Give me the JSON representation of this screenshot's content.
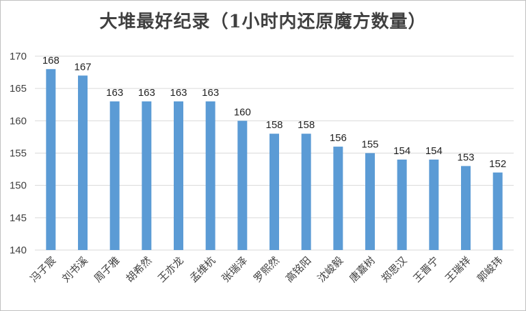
{
  "chart_data": {
    "type": "bar",
    "title": "大堆最好纪录（1小时内还原魔方数量）",
    "xlabel": "",
    "ylabel": "",
    "categories": [
      "冯子宸",
      "刘书溪",
      "周子雅",
      "胡希然",
      "王亦龙",
      "孟维杭",
      "张瑞泽",
      "罗熙然",
      "高铭阳",
      "沈峻毅",
      "唐嘉树",
      "郑思汉",
      "王晋宁",
      "王瑞祥",
      "郭峻玮"
    ],
    "values": [
      168,
      167,
      163,
      163,
      163,
      163,
      160,
      158,
      158,
      156,
      155,
      154,
      154,
      153,
      152
    ],
    "ylim": [
      140,
      170
    ],
    "yticks": [
      140,
      145,
      150,
      155,
      160,
      165,
      170
    ],
    "grid": true,
    "legend": "none",
    "data_labels": true,
    "bar_color": "#5b9bd5",
    "grid_color": "#d9d9d9"
  }
}
